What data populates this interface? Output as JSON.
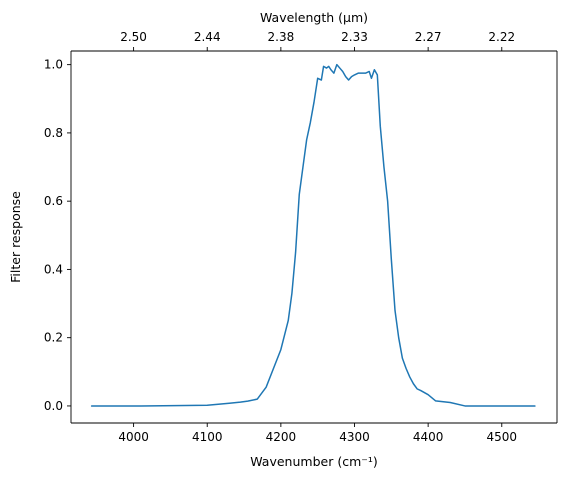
{
  "chart_data": {
    "type": "line",
    "xlabel": "Wavenumber (cm⁻¹)",
    "ylabel": "Filter response",
    "top_xlabel": "Wavelength (μm)",
    "xlim": [
      3915,
      4575
    ],
    "ylim": [
      -0.05,
      1.04
    ],
    "grid": false,
    "x_ticks": [
      4000,
      4100,
      4200,
      4300,
      4400,
      4500
    ],
    "x_tick_labels": [
      "4000",
      "4100",
      "4200",
      "4300",
      "4400",
      "4500"
    ],
    "y_ticks": [
      0.0,
      0.2,
      0.4,
      0.6,
      0.8,
      1.0
    ],
    "y_tick_labels": [
      "0.0",
      "0.2",
      "0.4",
      "0.6",
      "0.8",
      "1.0"
    ],
    "top_ticks_wavenumber": [
      4000,
      4100,
      4200,
      4300,
      4400,
      4500
    ],
    "top_tick_labels": [
      "2.50",
      "2.44",
      "2.38",
      "2.33",
      "2.27",
      "2.22"
    ],
    "series": [
      {
        "color": "#1f77b4",
        "x": [
          3943,
          4010,
          4100,
          4115,
          4130,
          4145,
          4155,
          4168,
          4180,
          4200,
          4210,
          4215,
          4220,
          4225,
          4230,
          4235,
          4240,
          4245,
          4250,
          4255,
          4258,
          4262,
          4265,
          4268,
          4272,
          4276,
          4280,
          4284,
          4288,
          4292,
          4296,
          4300,
          4305,
          4310,
          4315,
          4320,
          4323,
          4327,
          4331,
          4335,
          4340,
          4345,
          4350,
          4355,
          4360,
          4365,
          4370,
          4375,
          4380,
          4385,
          4390,
          4400,
          4410,
          4430,
          4450,
          4500,
          4545
        ],
        "y": [
          0.0,
          0.0,
          0.002,
          0.005,
          0.008,
          0.011,
          0.014,
          0.02,
          0.055,
          0.165,
          0.25,
          0.33,
          0.45,
          0.62,
          0.7,
          0.78,
          0.83,
          0.89,
          0.96,
          0.955,
          0.995,
          0.99,
          0.995,
          0.985,
          0.975,
          1.0,
          0.99,
          0.98,
          0.965,
          0.955,
          0.965,
          0.97,
          0.975,
          0.975,
          0.975,
          0.98,
          0.96,
          0.985,
          0.97,
          0.82,
          0.7,
          0.6,
          0.43,
          0.28,
          0.2,
          0.14,
          0.11,
          0.085,
          0.065,
          0.05,
          0.045,
          0.033,
          0.015,
          0.01,
          0.0,
          0.0,
          0.0
        ]
      }
    ]
  }
}
